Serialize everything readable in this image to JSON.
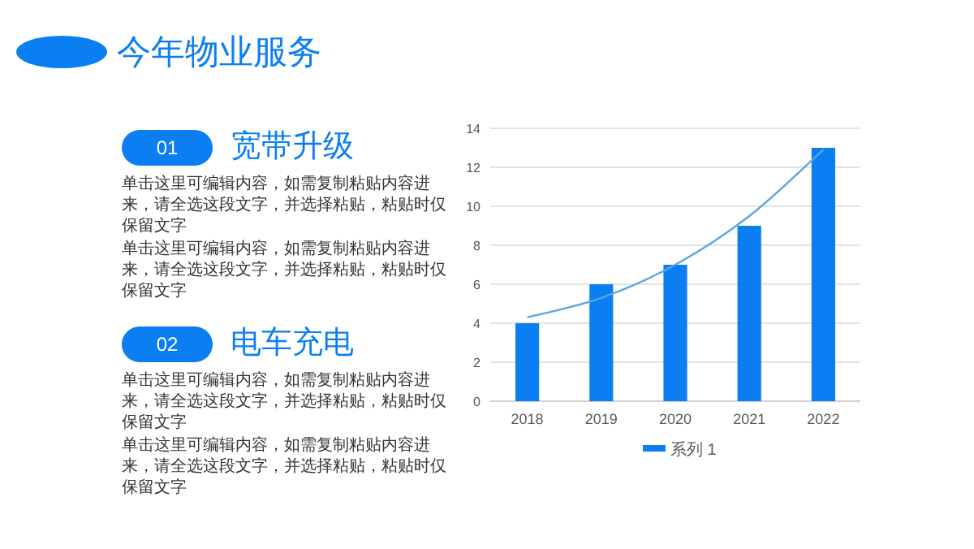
{
  "chart_data": [
    {
      "type": "other",
      "title": "今年物业服务",
      "annotations": [
        "01",
        "宽带升级",
        "单击这里可编辑内容，如需复制粘贴内容进来，请全选这段文字，并选择粘贴，粘贴时仅保留文字",
        "单击这里可编辑内容，如需复制粘贴内容进来，请全选这段文字，并选择粘贴，粘贴时仅保留文字",
        "02",
        "电车充电",
        "单击这里可编辑内容，如需复制粘贴内容进来，请全选这段文字，并选择粘贴，粘贴时仅保留文字",
        "单击这里可编辑内容，如需复制粘贴内容进来，请全选这段文字，并选择粘贴，粘贴时仅保留文字"
      ]
    },
    {
      "type": "bar",
      "categories": [
        "2018",
        "2019",
        "2020",
        "2021",
        "2022"
      ],
      "series": [
        {
          "name": "系列 1",
          "color": "#0b7ef2",
          "values": [
            4,
            6,
            7,
            9,
            13
          ]
        },
        {
          "type": "line",
          "color": "#5aa6e0",
          "values": [
            4.3,
            5.3,
            7.0,
            9.5,
            12.9
          ]
        }
      ],
      "ylim": [
        0,
        14
      ],
      "yticks": [
        0,
        2,
        4,
        6,
        8,
        10,
        12,
        14
      ],
      "grid": "y",
      "legend": "bottom"
    }
  ]
}
